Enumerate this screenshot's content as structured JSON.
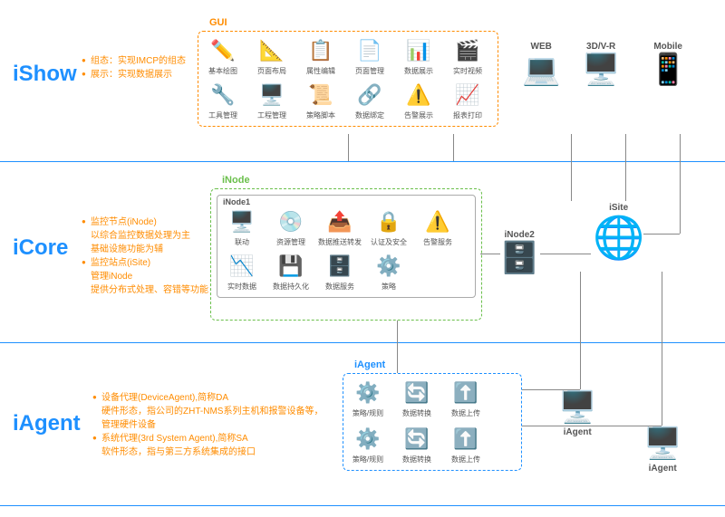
{
  "colors": {
    "accent": "#1e90ff",
    "bullet": "#ff8c00",
    "gui_border": "#ff8c00",
    "inode_border": "#6abf4b",
    "iagent_border": "#1e90ff"
  },
  "ishow": {
    "title": "iShow",
    "bullets": [
      "组态：实现IMCP的组态",
      "展示：实现数据展示"
    ],
    "gui_label": "GUI",
    "gui_items": [
      {
        "label": "基本绘图",
        "icon": "✏️",
        "name": "draw-icon"
      },
      {
        "label": "页面布局",
        "icon": "📐",
        "name": "layout-icon"
      },
      {
        "label": "属性编辑",
        "icon": "📋",
        "name": "property-icon"
      },
      {
        "label": "页面管理",
        "icon": "📄",
        "name": "page-mgmt-icon"
      },
      {
        "label": "数据展示",
        "icon": "📊",
        "name": "data-display-icon"
      },
      {
        "label": "实时视频",
        "icon": "🎬",
        "name": "video-icon"
      },
      {
        "label": "工具管理",
        "icon": "🔧",
        "name": "tool-mgmt-icon"
      },
      {
        "label": "工程管理",
        "icon": "🖥️",
        "name": "project-mgmt-icon"
      },
      {
        "label": "策略脚本",
        "icon": "📜",
        "name": "script-icon"
      },
      {
        "label": "数据绑定",
        "icon": "🔗",
        "name": "binding-icon"
      },
      {
        "label": "告警展示",
        "icon": "⚠️",
        "name": "alarm-display-icon"
      },
      {
        "label": "报表打印",
        "icon": "📈",
        "name": "report-icon"
      }
    ],
    "devices": [
      {
        "label": "WEB",
        "icon": "💻",
        "name": "laptop-icon"
      },
      {
        "label": "3D/V-R",
        "icon": "🖥️",
        "name": "monitor-icon"
      },
      {
        "label": "Mobile",
        "icon": "📱",
        "name": "mobile-icon"
      }
    ]
  },
  "icore": {
    "title": "iCore",
    "bullets": [
      "监控节点(iNode)\n以综合监控数据处理为主\n基础设施功能为辅",
      "监控站点(iSite)\n管理iNode\n提供分布式处理、容错等功能"
    ],
    "inode_label": "iNode",
    "inode1_label": "iNode1",
    "inode1_items": [
      {
        "label": "联动",
        "icon": "🖥️",
        "name": "linkage-icon"
      },
      {
        "label": "资源管理",
        "icon": "💿",
        "name": "resource-icon"
      },
      {
        "label": "数据推送转发",
        "icon": "📤",
        "name": "push-icon"
      },
      {
        "label": "认证及安全",
        "icon": "🔒",
        "name": "security-icon"
      },
      {
        "label": "告警服务",
        "icon": "⚠️",
        "name": "alarm-svc-icon"
      },
      {
        "label": "实时数据",
        "icon": "📉",
        "name": "realtime-icon"
      },
      {
        "label": "数据持久化",
        "icon": "💾",
        "name": "persist-icon"
      },
      {
        "label": "数据服务",
        "icon": "🗄️",
        "name": "data-svc-icon"
      },
      {
        "label": "策略",
        "icon": "⚙️",
        "name": "strategy-icon"
      }
    ],
    "inode2": {
      "label": "iNode2",
      "icon": "🗄️",
      "name": "database-icon"
    },
    "isite": {
      "label": "iSite",
      "icon": "🌐",
      "name": "globe-gear-icon"
    }
  },
  "iagent": {
    "title": "iAgent",
    "bullets": [
      "设备代理(DeviceAgent),简称DA\n硬件形态，指公司的ZHT-NMS系列主机和报警设备等，\n管理硬件设备",
      "系统代理(3rd System Agent),简称SA\n软件形态，指与第三方系统集成的接口"
    ],
    "box_label": "iAgent",
    "row1": [
      {
        "label": "策略/规则",
        "icon": "⚙️",
        "name": "rule-icon"
      },
      {
        "label": "数据转换",
        "icon": "🔄",
        "name": "transform-icon"
      },
      {
        "label": "数据上传",
        "icon": "⬆️",
        "name": "upload-icon"
      }
    ],
    "row2": [
      {
        "label": "策略/规则",
        "icon": "⚙️",
        "name": "rule2-icon"
      },
      {
        "label": "数据转换",
        "icon": "🔄",
        "name": "transform2-icon"
      },
      {
        "label": "数据上传",
        "icon": "⬆️",
        "name": "upload2-icon"
      }
    ],
    "devices": [
      {
        "label": "iAgent",
        "icon": "🖥️",
        "name": "iagent-dev1-icon"
      },
      {
        "label": "iAgent",
        "icon": "🖥️",
        "name": "iagent-dev2-icon"
      }
    ]
  }
}
